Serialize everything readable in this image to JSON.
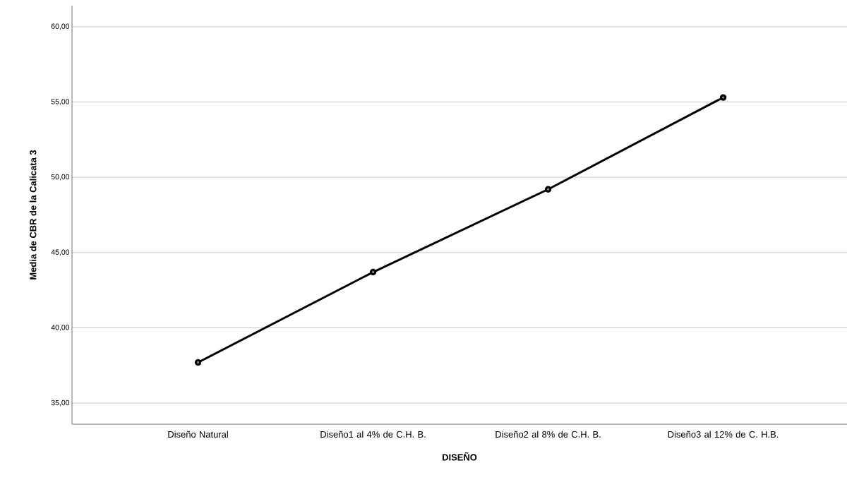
{
  "chart_data": {
    "type": "line",
    "xlabel": "DISEÑO",
    "ylabel": "Media de CBR de la Calicata 3",
    "categories": [
      "Diseño Natural",
      "Diseño1 al 4% de C.H. B.",
      "Diseño2 al 8% de C.H. B.",
      "Diseño3 al 12% de C. H.B."
    ],
    "series": [
      {
        "color": "#000000",
        "values": [
          37.7,
          43.7,
          49.2,
          55.3
        ]
      }
    ],
    "marker": "circle",
    "line_style": "solid",
    "grid": "y",
    "ylim": [
      33.6,
      61.4
    ],
    "yticks": [
      {
        "value": 35,
        "label": "35,00"
      },
      {
        "value": 40,
        "label": "40,00"
      },
      {
        "value": 45,
        "label": "45,00"
      },
      {
        "value": 50,
        "label": "50,00"
      },
      {
        "value": 55,
        "label": "55,00"
      },
      {
        "value": 60,
        "label": "60,00"
      }
    ]
  }
}
